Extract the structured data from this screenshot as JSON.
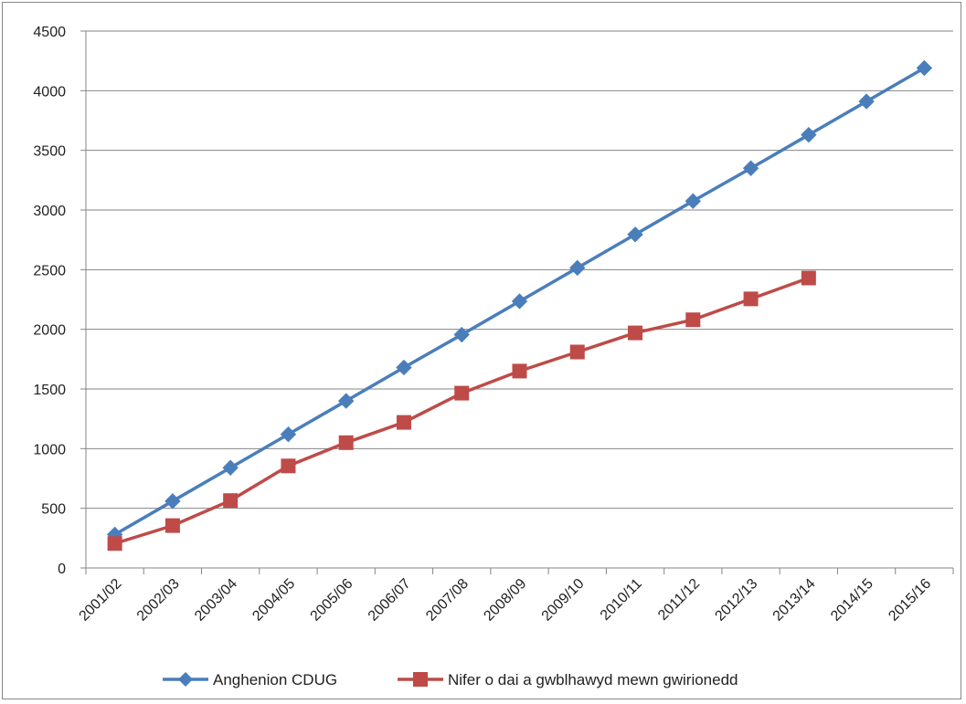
{
  "chart_data": {
    "type": "line",
    "title": "",
    "xlabel": "",
    "ylabel": "",
    "ylim": [
      0,
      4500
    ],
    "yticks": [
      0,
      500,
      1000,
      1500,
      2000,
      2500,
      3000,
      3500,
      4000,
      4500
    ],
    "ytick_labels": [
      "0",
      "500",
      "1000",
      "1500",
      "2000",
      "2500",
      "3000",
      "3500",
      "4000",
      "4500"
    ],
    "grid": "horizontal",
    "legend_position": "bottom",
    "categories": [
      "2001/02",
      "2002/03",
      "2003/04",
      "2004/05",
      "2005/06",
      "2006/07",
      "2007/08",
      "2008/09",
      "2009/10",
      "2010/11",
      "2011/12",
      "2012/13",
      "2013/14",
      "2014/15",
      "2015/16"
    ],
    "series": [
      {
        "name": "Anghenion CDUG",
        "color": "#4a7ebb",
        "marker": "diamond",
        "values": [
          280,
          560,
          840,
          1120,
          1400,
          1680,
          1955,
          2235,
          2515,
          2795,
          3075,
          3350,
          3630,
          3910,
          4190
        ]
      },
      {
        "name": "Nifer o dai a gwblhawyd mewn gwirionedd",
        "color": "#be4b48",
        "marker": "square",
        "values": [
          205,
          355,
          565,
          855,
          1050,
          1220,
          1465,
          1650,
          1810,
          1970,
          2080,
          2255,
          2430,
          null,
          null
        ]
      }
    ]
  }
}
